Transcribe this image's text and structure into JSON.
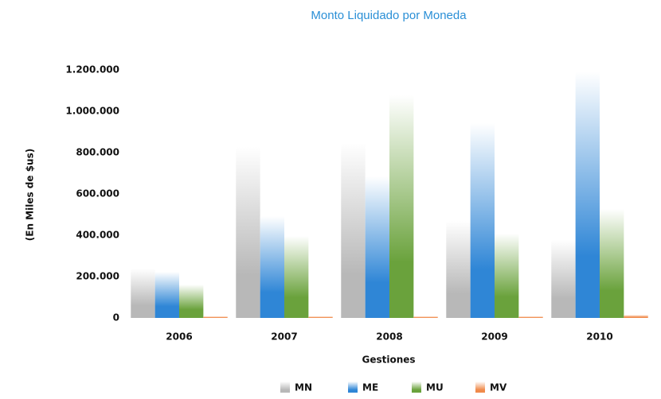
{
  "chart_data": {
    "type": "bar",
    "title": "Monto Liquidado por Moneda",
    "y_label": "(En Miles de $us)",
    "x_label": "Gestiones",
    "categories": [
      "2006",
      "2007",
      "2008",
      "2009",
      "2010"
    ],
    "series": [
      {
        "name": "MN",
        "color": "#b8b8b8",
        "values": [
          238000,
          827000,
          846000,
          469000,
          377000
        ]
      },
      {
        "name": "ME",
        "color": "#2f86d6",
        "values": [
          223000,
          492000,
          685000,
          942000,
          1190000
        ]
      },
      {
        "name": "MU",
        "color": "#6aa23c",
        "values": [
          161000,
          396000,
          1077000,
          408000,
          527000
        ]
      },
      {
        "name": "MV",
        "color": "#f08a4b",
        "values": [
          8000,
          8000,
          8000,
          8000,
          15000
        ]
      }
    ],
    "ylim": [
      0,
      1200000
    ],
    "yticks": [
      0,
      {
        "value": 200000,
        "label": "200.000"
      },
      {
        "value": 400000,
        "label": "400.000"
      },
      {
        "value": 600000,
        "label": "600.000"
      },
      {
        "value": 800000,
        "label": "800.000"
      },
      {
        "value": 1000000,
        "label": "1.000.000"
      },
      {
        "value": 1200000,
        "label": "1.200.000"
      }
    ],
    "grid": false,
    "legend": "bottom"
  }
}
